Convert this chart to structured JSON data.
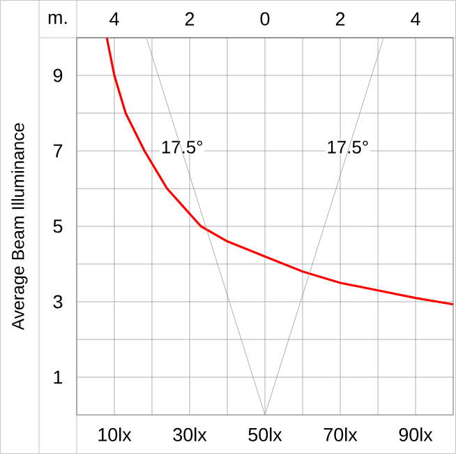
{
  "chart_data": {
    "type": "line",
    "xlabel": null,
    "ylabel": "Average Beam Illuminance",
    "x2label": "m.",
    "xlim": [
      0,
      100
    ],
    "ylim": [
      0,
      10
    ],
    "xticks": [
      {
        "value": 0,
        "label": null
      },
      {
        "value": 10,
        "label": "10lx"
      },
      {
        "value": 20,
        "label": null
      },
      {
        "value": 30,
        "label": "30lx"
      },
      {
        "value": 40,
        "label": null
      },
      {
        "value": 50,
        "label": "50lx"
      },
      {
        "value": 60,
        "label": null
      },
      {
        "value": 70,
        "label": "70lx"
      },
      {
        "value": 80,
        "label": null
      },
      {
        "value": 90,
        "label": "90lx"
      },
      {
        "value": 100,
        "label": null
      }
    ],
    "yticks": [
      {
        "value": 0,
        "label": null
      },
      1,
      {
        "value": 2,
        "label": null
      },
      3,
      {
        "value": 4,
        "label": null
      },
      5,
      {
        "value": 6,
        "label": null
      },
      7,
      {
        "value": 8,
        "label": null
      },
      9,
      {
        "value": 10,
        "label": null
      }
    ],
    "x2lim": [
      -5,
      5
    ],
    "x2ticks": [
      {
        "value": -4,
        "label": "4"
      },
      {
        "value": -2,
        "label": "2"
      },
      0,
      {
        "value": 2,
        "label": "2"
      },
      {
        "value": 4,
        "label": "4"
      }
    ],
    "grid": true,
    "line_style": "solid",
    "marker": "none",
    "series": [
      {
        "color": "#ff0000",
        "x": [
          8,
          10,
          13,
          18,
          24,
          33,
          40,
          50,
          60,
          70,
          80,
          90,
          100
        ],
        "values": [
          10,
          9.0,
          8,
          7,
          6,
          5,
          4.6,
          4.2,
          3.8,
          3.5,
          3.3,
          3.1,
          2.93
        ]
      },
      {
        "color": "#999999",
        "axis": "x2",
        "x": [
          -3.15,
          0,
          3.15
        ],
        "values": [
          10,
          0,
          10
        ]
      }
    ],
    "annotations": [
      {
        "text": "17.5°",
        "x": 28,
        "y": 7.1
      },
      {
        "text": "17.5°",
        "x": 72,
        "y": 7.1
      }
    ]
  }
}
